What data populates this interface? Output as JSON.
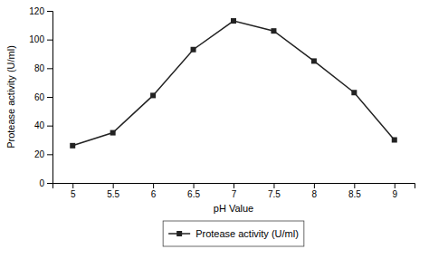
{
  "chart_data": {
    "type": "line",
    "xlabel": "pH Value",
    "ylabel": "Protease activity (U/ml)",
    "x": [
      5,
      5.5,
      6,
      6.5,
      7,
      7.5,
      8,
      8.5,
      9
    ],
    "series": [
      {
        "name": "Protease activity (U/ml)",
        "color": "#222222",
        "marker": "square",
        "values": [
          26,
          35,
          61,
          93,
          113,
          106,
          85,
          63,
          30
        ]
      }
    ],
    "xlim": [
      4.75,
      9.25
    ],
    "ylim": [
      0,
      120
    ],
    "xticks": [
      5,
      5.5,
      6,
      6.5,
      7,
      7.5,
      8,
      8.5,
      9
    ],
    "yticks": [
      0,
      20,
      40,
      60,
      80,
      100,
      120
    ],
    "grid": false,
    "legend": "bottom"
  }
}
